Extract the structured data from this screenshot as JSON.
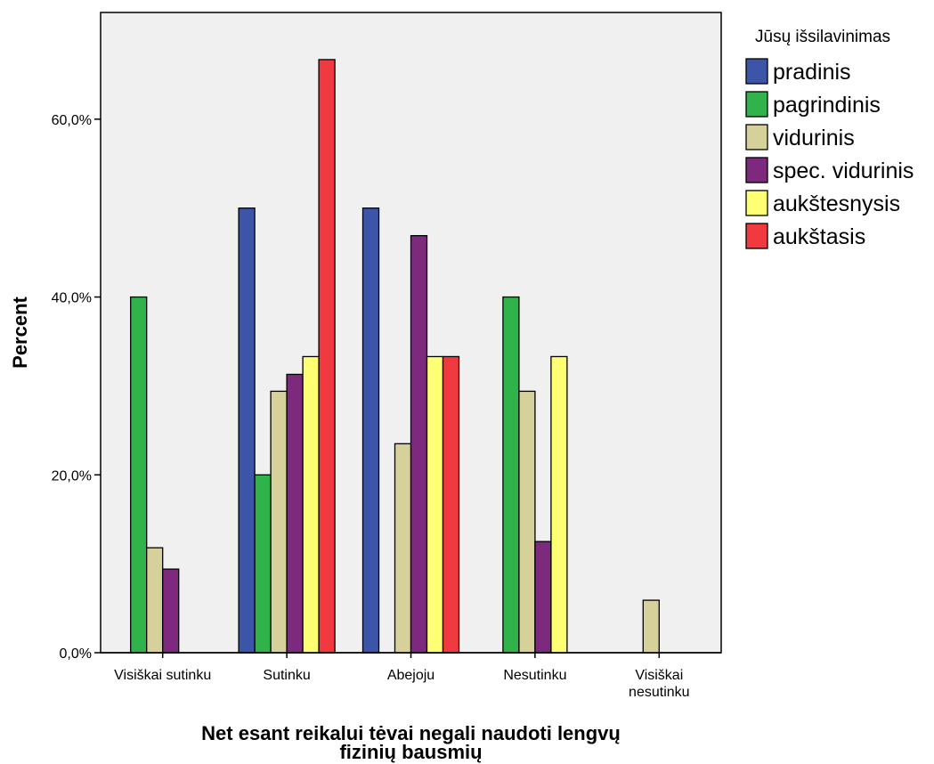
{
  "chart_data": {
    "type": "bar",
    "title": "",
    "xlabel": "Net esant reikalui tėvai  negali naudoti lengvų fizinių bausmių",
    "xlabel_lines": [
      "Net esant reikalui tėvai  negali naudoti lengvų",
      "fizinių bausmių"
    ],
    "ylabel": "Percent",
    "ylim": [
      0,
      72
    ],
    "yticks": [
      0,
      20,
      40,
      60
    ],
    "ytick_labels": [
      "0,0%",
      "20,0%",
      "40,0%",
      "60,0%"
    ],
    "grid": false,
    "legend_position": "right",
    "legend_title": "Jūsų išsilavinimas",
    "categories": [
      "Visiškai sutinku",
      "Sutinku",
      "Abejoju",
      "Nesutinku",
      "Visiškai nesutinku"
    ],
    "category_label_lines": [
      [
        "Visiškai sutinku"
      ],
      [
        "Sutinku"
      ],
      [
        "Abejoju"
      ],
      [
        "Nesutinku"
      ],
      [
        "Visiškai",
        "nesutinku"
      ]
    ],
    "series": [
      {
        "name": "pradinis",
        "color": "#3d55a8",
        "values": [
          0,
          50,
          50,
          0,
          0
        ]
      },
      {
        "name": "pagrindinis",
        "color": "#2fb34a",
        "values": [
          40,
          20,
          0,
          40,
          0
        ]
      },
      {
        "name": "vidurinis",
        "color": "#d6d19a",
        "values": [
          11.8,
          29.4,
          23.5,
          29.4,
          5.9
        ]
      },
      {
        "name": "spec. vidurinis",
        "color": "#7d2a7e",
        "values": [
          9.4,
          31.3,
          46.9,
          12.5,
          0
        ]
      },
      {
        "name": "aukštesnysis",
        "color": "#ffff73",
        "values": [
          0,
          33.3,
          33.3,
          33.3,
          0
        ]
      },
      {
        "name": "aukštasis",
        "color": "#f03a3f",
        "values": [
          0,
          66.7,
          33.3,
          0,
          0
        ]
      }
    ],
    "plot_background": "#f0f0f0"
  }
}
